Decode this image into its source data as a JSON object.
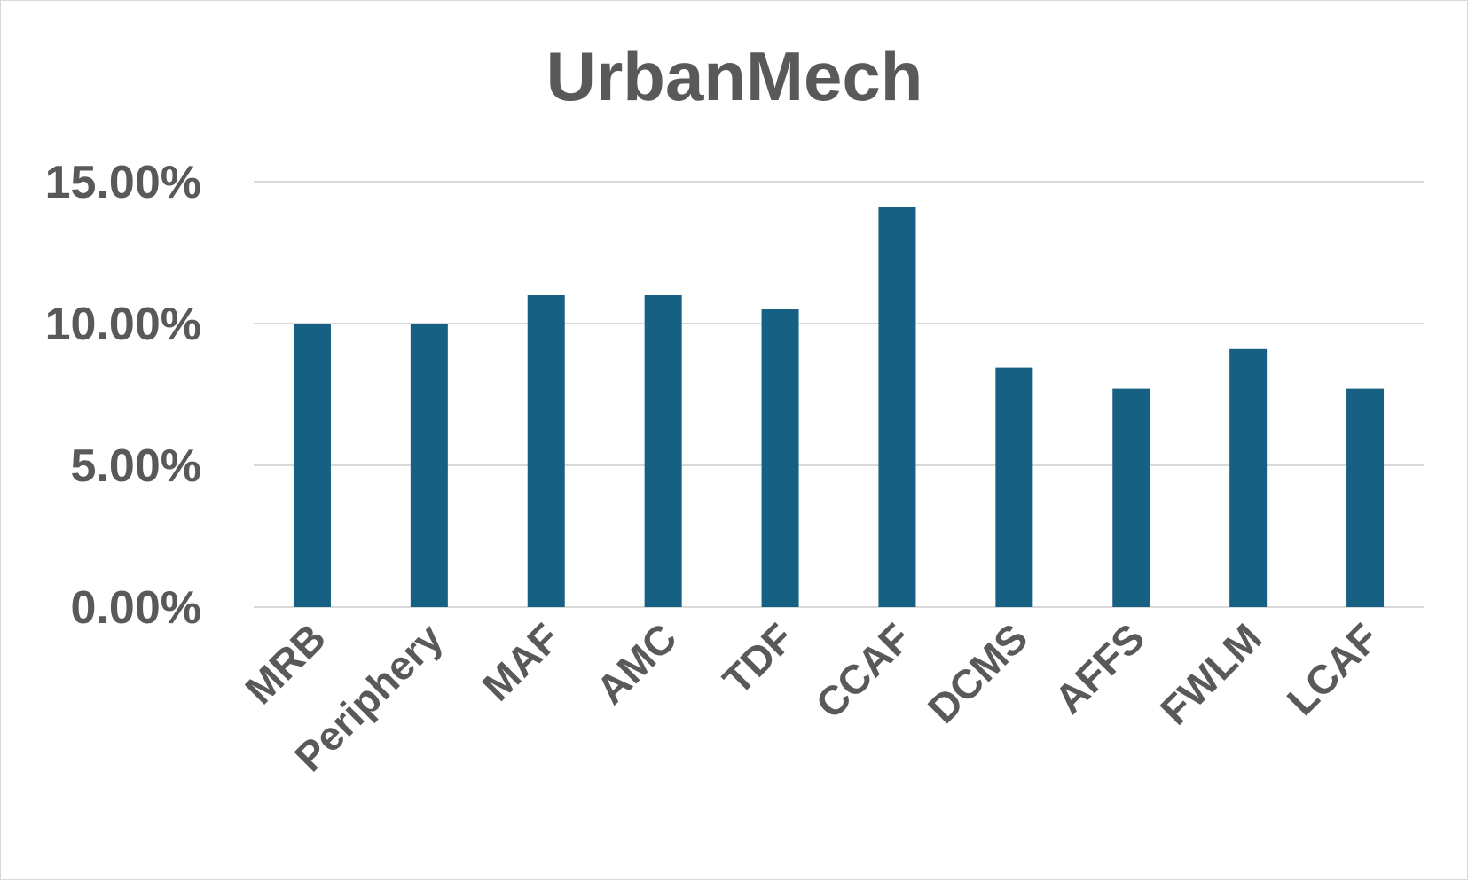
{
  "chart_data": {
    "type": "bar",
    "title": "UrbanMech",
    "xlabel": "",
    "ylabel": "",
    "categories": [
      "MRB",
      "Periphery",
      "MAF",
      "AMC",
      "TDF",
      "CCAF",
      "DCMS",
      "AFFS",
      "FWLM",
      "LCAF"
    ],
    "values": [
      10.0,
      10.0,
      11.0,
      11.0,
      10.5,
      14.1,
      8.45,
      7.7,
      9.1,
      7.7
    ],
    "value_format": "percent",
    "ylim": [
      0,
      15
    ],
    "yticks": [
      {
        "value": 0,
        "label": "0.00%"
      },
      {
        "value": 5,
        "label": "5.00%"
      },
      {
        "value": 10,
        "label": "10.00%"
      },
      {
        "value": 15,
        "label": "15.00%"
      }
    ],
    "grid": true,
    "legend": "none",
    "bar_color": "#166083"
  }
}
